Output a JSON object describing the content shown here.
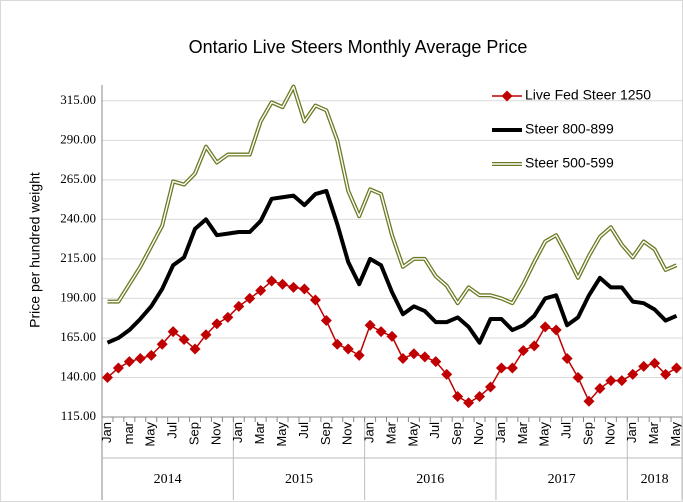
{
  "chart_data": {
    "type": "line",
    "title": "Ontario Live Steers Monthly Average Price",
    "y_label": "Price per hundred weight",
    "groups": [
      {
        "label": "2014",
        "categories": [
          "Jan",
          null,
          "mar",
          null,
          "May",
          null,
          "Jul",
          null,
          "Sep",
          null,
          "Nov",
          null
        ]
      },
      {
        "label": "2015",
        "categories": [
          "Jan",
          null,
          "Mar",
          null,
          "May",
          null,
          "Jul",
          null,
          "Sep",
          null,
          "Nov",
          null
        ]
      },
      {
        "label": "2016",
        "categories": [
          "Jan",
          null,
          "Mar",
          null,
          "May",
          null,
          "Jul",
          null,
          "Sep",
          null,
          "Nov",
          null
        ]
      },
      {
        "label": "2017",
        "categories": [
          "Jan",
          null,
          "Mar",
          null,
          "May",
          null,
          "Jul",
          null,
          "Sep",
          null,
          "Nov",
          null
        ]
      },
      {
        "label": "2018",
        "categories": [
          "Jan",
          null,
          "Mar",
          null,
          "May"
        ]
      }
    ],
    "ylim": [
      115,
      325
    ],
    "yticks": [
      {
        "value": 115,
        "label": "115.00"
      },
      {
        "value": 140,
        "label": "140.00"
      },
      {
        "value": 165,
        "label": "165.00"
      },
      {
        "value": 190,
        "label": "190.00"
      },
      {
        "value": 215,
        "label": "215.00"
      },
      {
        "value": 240,
        "label": "240.00"
      },
      {
        "value": 265,
        "label": "265.00"
      },
      {
        "value": 290,
        "label": "290.00"
      },
      {
        "value": 315,
        "label": "315.00"
      }
    ],
    "grid": true,
    "legend": "top-right",
    "series": [
      {
        "name": "Live Fed Steer 1250",
        "color": "#c00000",
        "marker": "diamond",
        "style": "solid",
        "values": [
          140,
          146,
          150,
          152,
          154,
          161,
          169,
          164,
          158,
          167,
          174,
          178,
          185,
          190,
          195,
          201,
          199,
          197,
          196,
          189,
          176,
          161,
          158,
          154,
          173,
          169,
          166,
          152,
          155,
          153,
          150,
          142,
          128,
          124,
          128,
          134,
          146,
          146,
          157,
          160,
          172,
          170,
          152,
          140,
          125,
          133,
          138,
          138,
          142,
          147,
          149,
          142,
          146
        ]
      },
      {
        "name": "Steer 800-899",
        "color": "#000000",
        "marker": null,
        "style": "thick",
        "values": [
          162,
          165,
          170,
          177,
          185,
          196,
          211,
          216,
          234,
          240,
          230,
          231,
          232,
          232,
          239,
          253,
          254,
          255,
          249,
          256,
          258,
          237,
          213,
          199,
          215,
          211,
          194,
          180,
          185,
          182,
          175,
          175,
          178,
          172,
          162,
          177,
          177,
          170,
          173,
          179,
          190,
          192,
          173,
          178,
          192,
          203,
          197,
          197,
          188,
          187,
          183,
          176,
          179
        ]
      },
      {
        "name": "Steer 500-599",
        "color": "#6b7a22",
        "marker": null,
        "style": "double",
        "values": [
          188,
          188,
          199,
          210,
          223,
          236,
          264,
          262,
          269,
          286,
          276,
          281,
          281,
          281,
          302,
          314,
          311,
          324,
          302,
          312,
          309,
          290,
          258,
          242,
          259,
          256,
          230,
          210,
          215,
          215,
          204,
          198,
          187,
          197,
          192,
          192,
          190,
          187,
          199,
          213,
          226,
          230,
          217,
          203,
          217,
          229,
          235,
          224,
          216,
          226,
          221,
          208,
          211
        ]
      }
    ]
  }
}
